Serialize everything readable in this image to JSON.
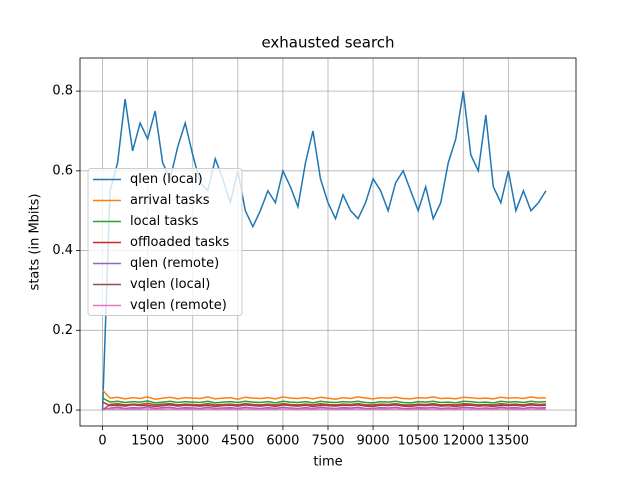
{
  "chart_data": {
    "type": "line",
    "title": "exhausted search",
    "x_label": "time",
    "y_label": "stats (in Mbits)",
    "xlim": [
      -750,
      15750
    ],
    "ylim": [
      -0.04,
      0.883
    ],
    "xticks": [
      0,
      1500,
      3000,
      4500,
      6000,
      7500,
      9000,
      10500,
      12000,
      13500
    ],
    "yticks": [
      {
        "value": 0,
        "label": "0.0"
      },
      0.2,
      0.4,
      0.6,
      0.8
    ],
    "grid": true,
    "legend": "center left",
    "x": [
      0,
      250,
      500,
      750,
      1000,
      1250,
      1500,
      1750,
      2000,
      2250,
      2500,
      2750,
      3000,
      3250,
      3500,
      3750,
      4000,
      4250,
      4500,
      4750,
      5000,
      5250,
      5500,
      5750,
      6000,
      6250,
      6500,
      6750,
      7000,
      7250,
      7500,
      7750,
      8000,
      8250,
      8500,
      8750,
      9000,
      9250,
      9500,
      9750,
      10000,
      10250,
      10500,
      10750,
      11000,
      11250,
      11500,
      11750,
      12000,
      12250,
      12500,
      12750,
      13000,
      13250,
      13500,
      13750,
      14000,
      14250,
      14500,
      14750
    ],
    "series": [
      {
        "name": "qlen (local)",
        "color": "#1f77b4",
        "values": [
          0.0,
          0.55,
          0.62,
          0.78,
          0.65,
          0.72,
          0.68,
          0.75,
          0.62,
          0.58,
          0.66,
          0.72,
          0.64,
          0.57,
          0.55,
          0.63,
          0.58,
          0.52,
          0.6,
          0.5,
          0.46,
          0.5,
          0.55,
          0.52,
          0.6,
          0.56,
          0.51,
          0.62,
          0.7,
          0.58,
          0.52,
          0.48,
          0.54,
          0.5,
          0.48,
          0.52,
          0.58,
          0.55,
          0.5,
          0.57,
          0.6,
          0.55,
          0.5,
          0.56,
          0.48,
          0.52,
          0.62,
          0.68,
          0.8,
          0.64,
          0.6,
          0.74,
          0.56,
          0.52,
          0.6,
          0.5,
          0.55,
          0.5,
          0.52,
          0.55
        ]
      },
      {
        "name": "arrival tasks",
        "color": "#ff7f0e",
        "values": [
          0.05,
          0.03,
          0.032,
          0.028,
          0.031,
          0.029,
          0.033,
          0.027,
          0.03,
          0.032,
          0.028,
          0.031,
          0.03,
          0.029,
          0.033,
          0.028,
          0.03,
          0.031,
          0.027,
          0.032,
          0.03,
          0.029,
          0.031,
          0.028,
          0.033,
          0.03,
          0.029,
          0.031,
          0.028,
          0.032,
          0.03,
          0.027,
          0.031,
          0.029,
          0.033,
          0.03,
          0.028,
          0.031,
          0.03,
          0.032,
          0.029,
          0.028,
          0.031,
          0.03,
          0.033,
          0.029,
          0.03,
          0.028,
          0.032,
          0.031,
          0.029,
          0.03,
          0.028,
          0.032,
          0.03,
          0.031,
          0.029,
          0.033,
          0.03,
          0.031
        ]
      },
      {
        "name": "local tasks",
        "color": "#2ca02c",
        "values": [
          0.03,
          0.02,
          0.022,
          0.019,
          0.021,
          0.02,
          0.023,
          0.018,
          0.02,
          0.022,
          0.019,
          0.021,
          0.02,
          0.019,
          0.022,
          0.018,
          0.02,
          0.021,
          0.019,
          0.022,
          0.02,
          0.019,
          0.021,
          0.018,
          0.022,
          0.02,
          0.019,
          0.021,
          0.018,
          0.022,
          0.02,
          0.019,
          0.021,
          0.02,
          0.022,
          0.019,
          0.018,
          0.021,
          0.02,
          0.022,
          0.019,
          0.018,
          0.021,
          0.02,
          0.022,
          0.019,
          0.02,
          0.018,
          0.022,
          0.021,
          0.019,
          0.02,
          0.018,
          0.022,
          0.02,
          0.021,
          0.019,
          0.022,
          0.02,
          0.021
        ]
      },
      {
        "name": "offloaded tasks",
        "color": "#d62728",
        "values": [
          0.02,
          0.011,
          0.012,
          0.01,
          0.013,
          0.011,
          0.012,
          0.009,
          0.011,
          0.013,
          0.01,
          0.012,
          0.011,
          0.01,
          0.012,
          0.009,
          0.011,
          0.012,
          0.01,
          0.013,
          0.011,
          0.01,
          0.012,
          0.009,
          0.013,
          0.011,
          0.01,
          0.012,
          0.009,
          0.012,
          0.011,
          0.01,
          0.012,
          0.011,
          0.013,
          0.01,
          0.009,
          0.012,
          0.011,
          0.013,
          0.01,
          0.009,
          0.012,
          0.011,
          0.013,
          0.01,
          0.011,
          0.009,
          0.012,
          0.012,
          0.01,
          0.011,
          0.009,
          0.012,
          0.011,
          0.012,
          0.01,
          0.013,
          0.011,
          0.012
        ]
      },
      {
        "name": "qlen (remote)",
        "color": "#9467bd",
        "values": [
          0.0,
          0.005,
          0.007,
          0.004,
          0.006,
          0.005,
          0.008,
          0.004,
          0.006,
          0.007,
          0.004,
          0.006,
          0.005,
          0.004,
          0.007,
          0.004,
          0.005,
          0.006,
          0.004,
          0.007,
          0.005,
          0.004,
          0.006,
          0.004,
          0.007,
          0.005,
          0.004,
          0.006,
          0.004,
          0.007,
          0.005,
          0.004,
          0.006,
          0.005,
          0.007,
          0.004,
          0.004,
          0.006,
          0.005,
          0.007,
          0.004,
          0.004,
          0.006,
          0.005,
          0.007,
          0.004,
          0.005,
          0.004,
          0.007,
          0.006,
          0.004,
          0.005,
          0.004,
          0.007,
          0.005,
          0.006,
          0.004,
          0.007,
          0.005,
          0.006
        ]
      },
      {
        "name": "vqlen (local)",
        "color": "#8c564b",
        "values": [
          0.0,
          0.014,
          0.016,
          0.013,
          0.015,
          0.014,
          0.017,
          0.013,
          0.015,
          0.016,
          0.013,
          0.015,
          0.014,
          0.013,
          0.016,
          0.013,
          0.014,
          0.015,
          0.013,
          0.016,
          0.014,
          0.013,
          0.015,
          0.013,
          0.016,
          0.014,
          0.013,
          0.015,
          0.013,
          0.016,
          0.014,
          0.013,
          0.015,
          0.014,
          0.016,
          0.013,
          0.013,
          0.015,
          0.014,
          0.016,
          0.013,
          0.013,
          0.015,
          0.014,
          0.016,
          0.013,
          0.014,
          0.013,
          0.016,
          0.015,
          0.013,
          0.014,
          0.013,
          0.016,
          0.014,
          0.015,
          0.013,
          0.016,
          0.014,
          0.015
        ]
      },
      {
        "name": "vqlen (remote)",
        "color": "#e377c2",
        "values": [
          0.0,
          0.002,
          0.003,
          0.001,
          0.002,
          0.002,
          0.003,
          0.001,
          0.002,
          0.003,
          0.001,
          0.002,
          0.002,
          0.001,
          0.003,
          0.001,
          0.002,
          0.002,
          0.001,
          0.003,
          0.002,
          0.001,
          0.002,
          0.001,
          0.003,
          0.002,
          0.001,
          0.002,
          0.001,
          0.003,
          0.002,
          0.001,
          0.002,
          0.002,
          0.003,
          0.001,
          0.001,
          0.002,
          0.002,
          0.003,
          0.001,
          0.001,
          0.002,
          0.002,
          0.003,
          0.001,
          0.002,
          0.001,
          0.003,
          0.002,
          0.001,
          0.002,
          0.001,
          0.003,
          0.002,
          0.002,
          0.001,
          0.003,
          0.002,
          0.002
        ]
      }
    ]
  }
}
